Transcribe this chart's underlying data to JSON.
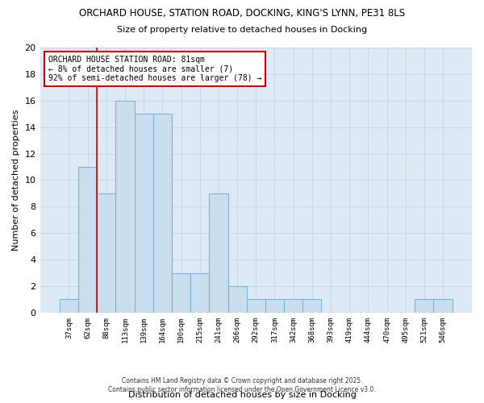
{
  "title_line1": "ORCHARD HOUSE, STATION ROAD, DOCKING, KING'S LYNN, PE31 8LS",
  "title_line2": "Size of property relative to detached houses in Docking",
  "xlabel": "Distribution of detached houses by size in Docking",
  "ylabel": "Number of detached properties",
  "categories": [
    "37sqm",
    "62sqm",
    "88sqm",
    "113sqm",
    "139sqm",
    "164sqm",
    "190sqm",
    "215sqm",
    "241sqm",
    "266sqm",
    "292sqm",
    "317sqm",
    "342sqm",
    "368sqm",
    "393sqm",
    "419sqm",
    "444sqm",
    "470sqm",
    "495sqm",
    "521sqm",
    "546sqm"
  ],
  "values": [
    1,
    11,
    9,
    16,
    15,
    15,
    3,
    3,
    9,
    2,
    1,
    1,
    1,
    1,
    0,
    0,
    0,
    0,
    0,
    1,
    1
  ],
  "bar_color": "#c9dff0",
  "bar_edge_color": "#7fb3d9",
  "grid_color": "#c8d8e8",
  "background_color": "#ddeaf6",
  "vline_x_index": 1.5,
  "vline_color": "#cc0000",
  "annotation_text": "ORCHARD HOUSE STATION ROAD: 81sqm\n← 8% of detached houses are smaller (7)\n92% of semi-detached houses are larger (78) →",
  "annotation_box_edge": "#cc0000",
  "footer_line1": "Contains HM Land Registry data © Crown copyright and database right 2025.",
  "footer_line2": "Contains public sector information licensed under the Open Government Licence v3.0.",
  "ylim": [
    0,
    20
  ],
  "yticks": [
    0,
    2,
    4,
    6,
    8,
    10,
    12,
    14,
    16,
    18,
    20
  ]
}
